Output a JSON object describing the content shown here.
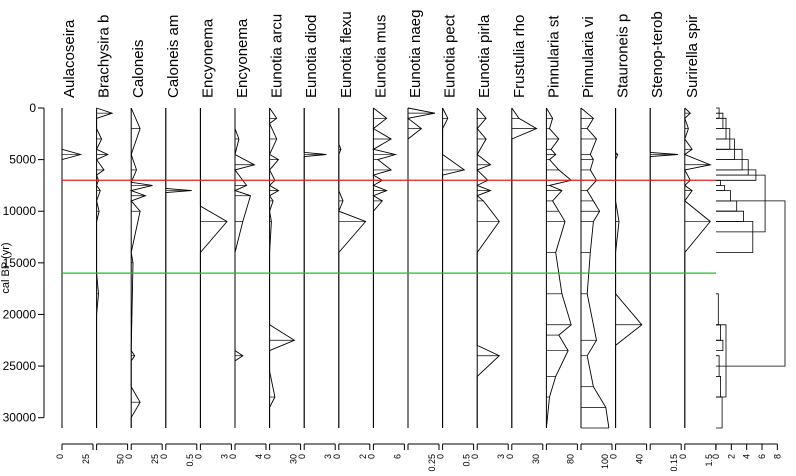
{
  "chart_data": {
    "type": "line",
    "subtype": "stratigraphic-diagram",
    "ylabel": "cal BP (yr)",
    "ylim": [
      0,
      31000
    ],
    "y_ticks": [
      0,
      5000,
      10000,
      15000,
      20000,
      25000,
      30000
    ],
    "y_tick_labels": [
      "0",
      "5000",
      "10000",
      "15000",
      "20000",
      "25000",
      "30000"
    ],
    "zone_lines": [
      {
        "depth": 7000,
        "color": "#e02020"
      },
      {
        "depth": 16000,
        "color": "#20c020"
      }
    ],
    "series": [
      {
        "name": "Aulacoseira",
        "max": 50,
        "tick_labels": [
          "0",
          "25"
        ],
        "depth": [
          0,
          4000,
          4500,
          5000,
          31000
        ],
        "values": [
          0,
          0,
          30,
          0,
          0
        ]
      },
      {
        "name": "Brachysira  b",
        "max": 50,
        "tick_labels": [
          "50"
        ],
        "depth": [
          0,
          500,
          1000,
          2000,
          3000,
          4000,
          4500,
          5000,
          6000,
          6500,
          7000,
          7500,
          8000,
          9000,
          10000,
          11000,
          14000,
          16000,
          18000,
          20000,
          21000,
          31000
        ],
        "values": [
          0,
          25,
          0,
          0,
          8,
          0,
          18,
          0,
          12,
          0,
          3,
          0,
          6,
          0,
          4,
          0,
          0,
          0,
          3,
          0,
          0,
          0
        ]
      },
      {
        "name": "Caloneis",
        "max": 35,
        "tick_labels": [
          "0",
          "25"
        ],
        "depth": [
          0,
          2000,
          4500,
          6000,
          7200,
          7500,
          8000,
          8500,
          9000,
          10000,
          14000,
          15000,
          23500,
          24000,
          24500,
          27000,
          28500,
          30000,
          31000
        ],
        "values": [
          0,
          10,
          0,
          6,
          0,
          24,
          0,
          16,
          0,
          10,
          0,
          2,
          0,
          4,
          0,
          0,
          10,
          0,
          0
        ]
      },
      {
        "name": "Caloneis am",
        "max": 0.6,
        "tick_labels": [
          "0",
          "0.5"
        ],
        "depth": [
          0,
          7800,
          8000,
          8200,
          31000
        ],
        "values": [
          0,
          0,
          0.5,
          0,
          0
        ]
      },
      {
        "name": "Encyonema",
        "max": 3.5,
        "tick_labels": [
          "0",
          "3"
        ],
        "depth": [
          0,
          9500,
          11000,
          14000,
          31000
        ],
        "values": [
          0,
          0,
          3,
          0,
          0
        ]
      },
      {
        "name": "Encyonema",
        "max": 4,
        "tick_labels": [
          "0",
          "4"
        ],
        "depth": [
          0,
          2000,
          3000,
          4500,
          5500,
          6000,
          7500,
          8000,
          8500,
          11000,
          14000,
          23500,
          24000,
          24500,
          26000,
          31000
        ],
        "values": [
          0,
          0,
          0.5,
          0,
          2.5,
          0,
          1.5,
          0,
          2,
          1,
          0,
          0,
          1,
          0,
          0,
          0
        ]
      },
      {
        "name": "Eunotia arcu",
        "max": 35,
        "tick_labels": [
          "0",
          "30"
        ],
        "depth": [
          0,
          1000,
          1500,
          3000,
          4500,
          5000,
          6000,
          7000,
          7500,
          8000,
          8500,
          9000,
          10000,
          11000,
          14000,
          21000,
          22500,
          23500,
          25500,
          28000,
          29000,
          31000
        ],
        "values": [
          0,
          8,
          0,
          8,
          0,
          10,
          0,
          6,
          0,
          10,
          0,
          4,
          0,
          2,
          0,
          0,
          28,
          0,
          0,
          6,
          0,
          0
        ]
      },
      {
        "name": "Eunotia diod",
        "max": 3.5,
        "tick_labels": [
          "0",
          "3"
        ],
        "depth": [
          0,
          4300,
          4500,
          4700,
          31000
        ],
        "values": [
          0,
          0,
          2.5,
          0,
          0
        ]
      },
      {
        "name": "Eunotia flexu",
        "max": 2.2,
        "tick_labels": [
          "0",
          "2"
        ],
        "depth": [
          0,
          3500,
          4000,
          4500,
          8000,
          9000,
          10000,
          11000,
          14000,
          31000
        ],
        "values": [
          0,
          0,
          0.15,
          0,
          0,
          0.3,
          0,
          1.9,
          0,
          0
        ]
      },
      {
        "name": "Eunotia mus",
        "max": 7,
        "tick_labels": [
          "0",
          "6"
        ],
        "depth": [
          0,
          1000,
          2000,
          3000,
          4000,
          4500,
          5000,
          6000,
          6500,
          7000,
          7500,
          8000,
          8500,
          9000,
          10000,
          31000
        ],
        "values": [
          0,
          3,
          0,
          4,
          0,
          5,
          1,
          4,
          0,
          2,
          0,
          3,
          0,
          2,
          0,
          0
        ]
      },
      {
        "name": "Eunotia naeg",
        "max": 0.3,
        "tick_labels": [
          "0.25"
        ],
        "depth": [
          0,
          500,
          1000,
          2000,
          3000,
          31000
        ],
        "values": [
          0,
          0.26,
          0,
          0.13,
          0,
          0
        ]
      },
      {
        "name": "Eunotia pect",
        "max": 0.6,
        "tick_labels": [
          "0",
          "0.5"
        ],
        "depth": [
          0,
          1000,
          2000,
          4500,
          6000,
          6500,
          31000
        ],
        "values": [
          0,
          0.1,
          0,
          0,
          0.42,
          0,
          0
        ]
      },
      {
        "name": "Eunotia pirla",
        "max": 3.5,
        "tick_labels": [
          "0",
          "3"
        ],
        "depth": [
          0,
          1000,
          2000,
          3000,
          4500,
          5500,
          6000,
          7000,
          7500,
          8000,
          8500,
          9000,
          11000,
          14000,
          23000,
          24000,
          26000,
          31000
        ],
        "values": [
          0,
          1,
          0,
          1,
          0,
          1.5,
          0,
          1.2,
          0,
          1.5,
          0,
          0.7,
          2.5,
          0,
          0,
          2.5,
          0,
          0
        ]
      },
      {
        "name": "Frustulia  rho",
        "max": 35,
        "tick_labels": [
          "0",
          "30"
        ],
        "depth": [
          0,
          1000,
          2000,
          3000,
          5000,
          31000
        ],
        "values": [
          0,
          8,
          28,
          0,
          0,
          0
        ]
      },
      {
        "name": "Pinnularia st",
        "max": 100,
        "tick_labels": [
          "80"
        ],
        "depth": [
          0,
          1000,
          2000,
          3000,
          4000,
          4500,
          5000,
          6000,
          7000,
          7500,
          8000,
          9000,
          10000,
          11000,
          14000,
          18000,
          21000,
          22000,
          23500,
          26000,
          28000,
          31000
        ],
        "values": [
          0,
          20,
          10,
          40,
          15,
          30,
          10,
          40,
          80,
          10,
          50,
          20,
          40,
          60,
          30,
          50,
          80,
          40,
          70,
          30,
          10,
          0
        ]
      },
      {
        "name": "Pinnularia vi",
        "max": 100,
        "tick_labels": [
          "100"
        ],
        "depth": [
          0,
          1000,
          2000,
          3000,
          4500,
          5000,
          6000,
          7000,
          8000,
          9000,
          10000,
          11000,
          14000,
          18000,
          22500,
          24000,
          27000,
          29000,
          31000
        ],
        "values": [
          0,
          40,
          20,
          50,
          30,
          40,
          30,
          50,
          20,
          40,
          60,
          40,
          30,
          20,
          50,
          20,
          40,
          80,
          90
        ]
      },
      {
        "name": "Stauroneis p",
        "max": 45,
        "tick_labels": [
          "0",
          "40"
        ],
        "depth": [
          0,
          4300,
          4500,
          5000,
          9000,
          11000,
          14000,
          18000,
          21000,
          23000,
          31000
        ],
        "values": [
          0,
          0,
          3,
          0,
          0,
          5,
          0,
          0,
          38,
          0,
          0
        ]
      },
      {
        "name": "Stenop-terob",
        "max": 0.18,
        "tick_labels": [
          "0.15"
        ],
        "depth": [
          0,
          4300,
          4500,
          4700,
          31000
        ],
        "values": [
          0,
          0,
          0.16,
          0,
          0
        ]
      },
      {
        "name": "Surirella spir",
        "max": 1.7,
        "tick_labels": [
          "0",
          "1.5"
        ],
        "depth": [
          0,
          500,
          1000,
          2000,
          3000,
          4000,
          4500,
          5500,
          6000,
          7000,
          7500,
          8000,
          9000,
          11000,
          14000,
          31000
        ],
        "values": [
          0,
          0.3,
          0,
          0.2,
          0,
          0.4,
          0,
          1.4,
          0,
          0.3,
          0,
          0.4,
          0,
          1.4,
          0,
          0
        ]
      }
    ],
    "dendrogram": {
      "x_ticks": [
        0,
        2,
        4,
        6,
        8
      ],
      "x_tick_labels": [
        "0",
        "2",
        "4",
        "6",
        "8"
      ],
      "xlim": [
        0,
        9
      ],
      "merges": [
        {
          "depths": [
            0,
            1000
          ],
          "height": 0.4
        },
        {
          "depths": [
            500,
            2000
          ],
          "height": 0.9
        },
        {
          "depths": [
            1000,
            3000
          ],
          "height": 1.3
        },
        {
          "depths": [
            2000,
            4000
          ],
          "height": 1.8
        },
        {
          "depths": [
            3000,
            5000
          ],
          "height": 2.4
        },
        {
          "depths": [
            4000,
            6000
          ],
          "height": 3.4
        },
        {
          "depths": [
            5000,
            6500
          ],
          "height": 4.2
        },
        {
          "depths": [
            6000,
            7000
          ],
          "height": 5.2
        },
        {
          "depths": [
            7000,
            7500
          ],
          "height": 0.6
        },
        {
          "depths": [
            7500,
            8000
          ],
          "height": 1.1
        },
        {
          "depths": [
            8000,
            9000
          ],
          "height": 1.9
        },
        {
          "depths": [
            9000,
            10000
          ],
          "height": 2.7
        },
        {
          "depths": [
            10000,
            11000
          ],
          "height": 3.6
        },
        {
          "depths": [
            11000,
            14000
          ],
          "height": 4.8
        },
        {
          "depths": [
            6500,
            12000
          ],
          "height": 6.4
        },
        {
          "depths": [
            18000,
            21000
          ],
          "height": 0.3
        },
        {
          "depths": [
            21000,
            22500
          ],
          "height": 0.6
        },
        {
          "depths": [
            22500,
            23500
          ],
          "height": 0.9
        },
        {
          "depths": [
            24000,
            26000
          ],
          "height": 0.4
        },
        {
          "depths": [
            26000,
            28000
          ],
          "height": 0.6
        },
        {
          "depths": [
            28000,
            31000
          ],
          "height": 0.8
        },
        {
          "depths": [
            21000,
            28000
          ],
          "height": 1.3
        },
        {
          "depths": [
            9000,
            25000
          ],
          "height": 9.0
        }
      ]
    }
  }
}
